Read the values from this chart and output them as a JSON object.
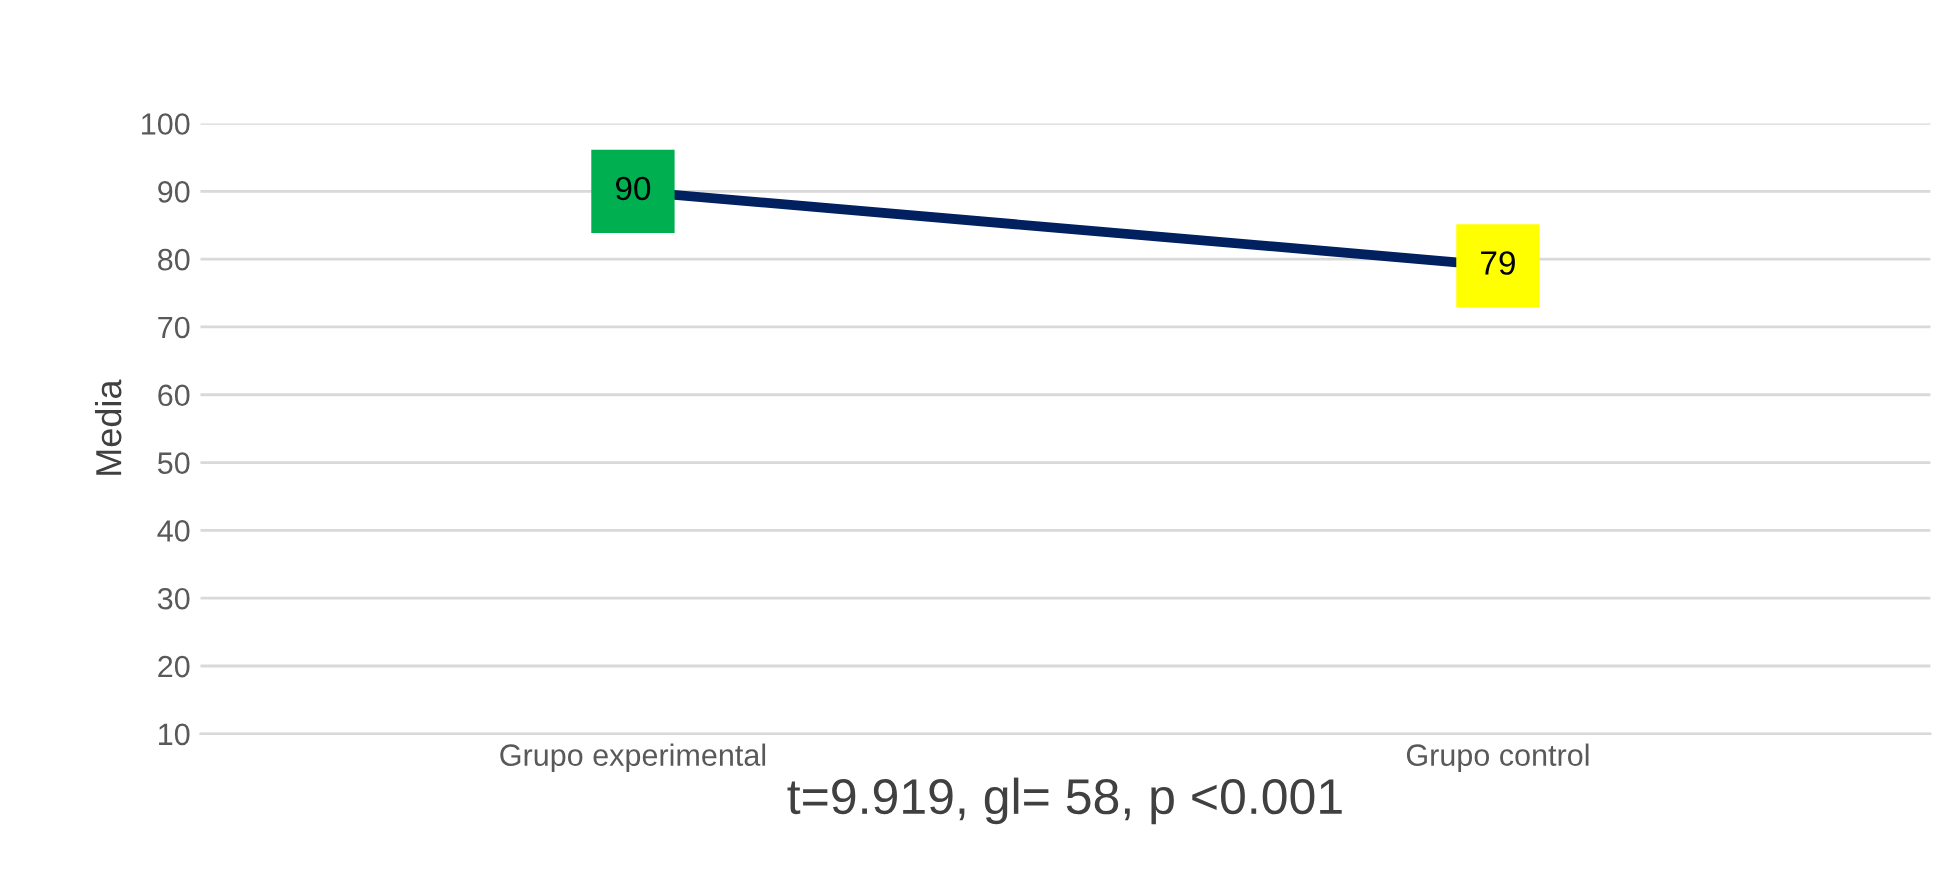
{
  "chart_data": {
    "type": "line",
    "ylabel": "Media",
    "xlabel": "t=9.919, gl= 58, p <0.001",
    "categories": [
      "Grupo experimental",
      "Grupo control"
    ],
    "series": [
      {
        "color": "#002060",
        "values": [
          90,
          79
        ],
        "colors": [
          "#00b050",
          "#ffff00"
        ]
      }
    ],
    "ylim": [
      10,
      100
    ],
    "yticks": [
      10,
      20,
      30,
      40,
      50,
      60,
      70,
      80,
      90,
      100
    ],
    "grid": "y",
    "data_labels": true,
    "marker": "square",
    "line_style": "solid"
  }
}
